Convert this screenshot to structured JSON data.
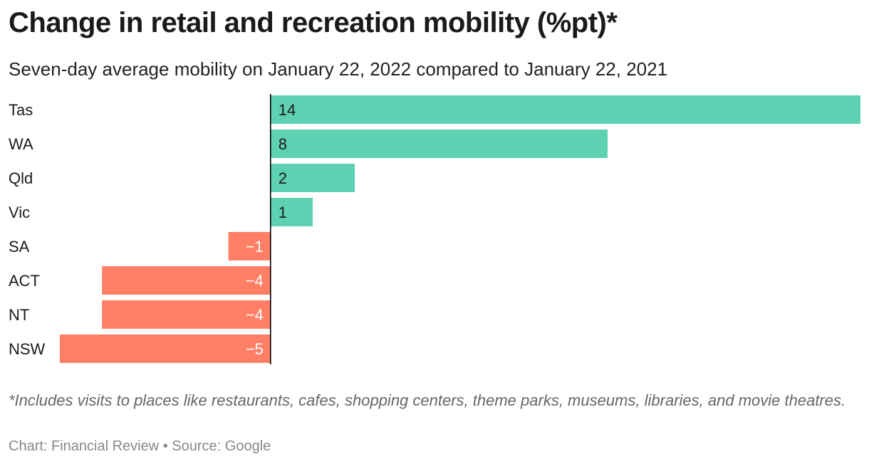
{
  "header": {
    "title": "Change in retail and recreation mobility (%pt)*",
    "subtitle": "Seven-day average mobility on January 22, 2022 compared to January 22, 2021"
  },
  "footer": {
    "note": "*Includes visits to places like restaurants, cafes, shopping centers, theme parks, museums, libraries, and movie theatres.",
    "source": "Chart: Financial Review • Source: Google"
  },
  "colors": {
    "positive": "#5ed1b3",
    "negative": "#ff7f66",
    "zero_line": "#000000"
  },
  "chart_data": {
    "type": "bar",
    "orientation": "horizontal",
    "title": "Change in retail and recreation mobility (%pt)*",
    "subtitle": "Seven-day average mobility on January 22, 2022 compared to January 22, 2021",
    "categories": [
      "Tas",
      "WA",
      "Qld",
      "Vic",
      "SA",
      "ACT",
      "NT",
      "NSW"
    ],
    "values": [
      14,
      8,
      2,
      1,
      -1,
      -4,
      -4,
      -5
    ],
    "value_labels": [
      "14",
      "8",
      "2",
      "1",
      "−1",
      "−4",
      "−4",
      "−5"
    ],
    "xlim": [
      -5,
      14
    ],
    "grid": false,
    "legend": "none"
  }
}
